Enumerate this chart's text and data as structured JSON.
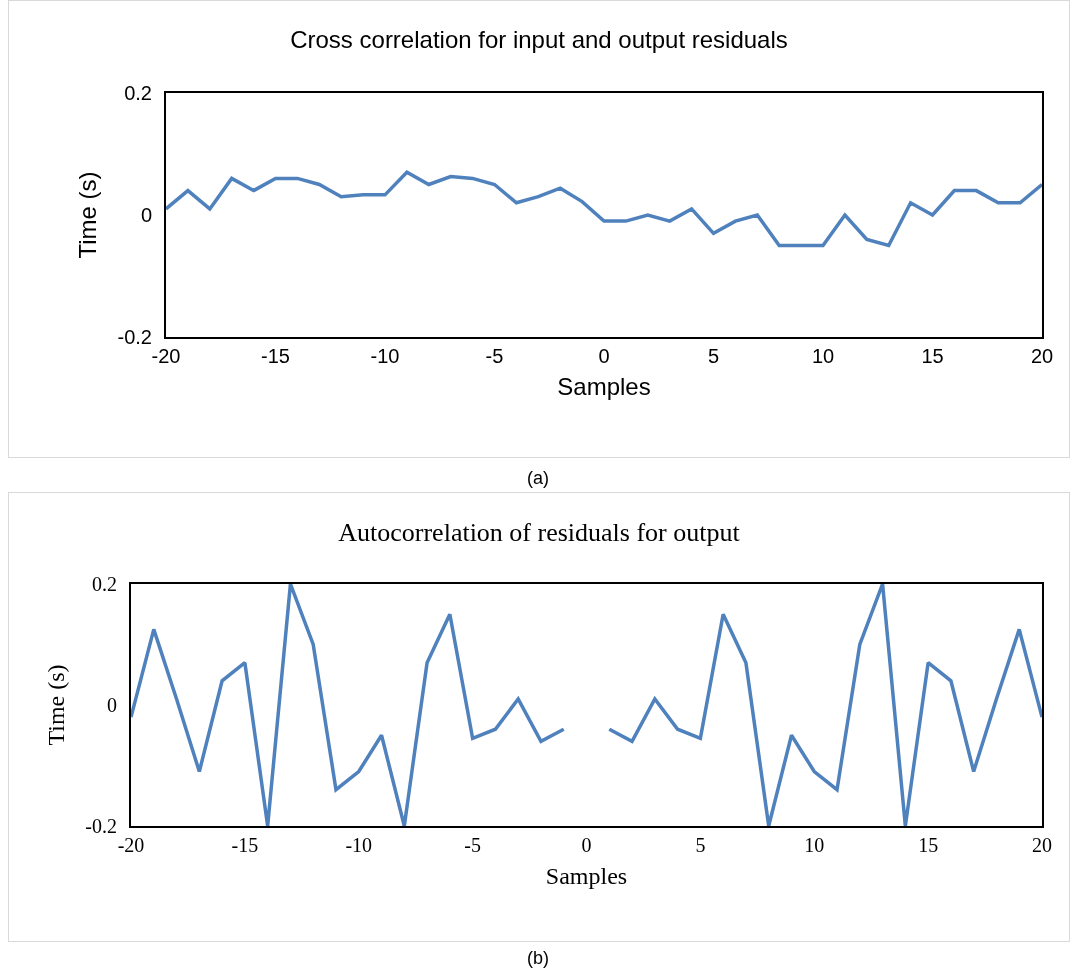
{
  "chart_data": [
    {
      "type": "line",
      "title": "Cross correlation for input and output residuals",
      "xlabel": "Samples",
      "ylabel": "Time (s)",
      "annotations": [
        "(a)"
      ],
      "x": [
        -20,
        -19,
        -18,
        -17,
        -16,
        -15,
        -14,
        -13,
        -12,
        -11,
        -10,
        -9,
        -8,
        -7,
        -6,
        -5,
        -4,
        -3,
        -2,
        -1,
        0,
        1,
        2,
        3,
        4,
        5,
        6,
        7,
        8,
        9,
        10,
        11,
        12,
        13,
        14,
        15,
        16,
        17,
        18,
        19,
        20
      ],
      "series": [
        {
          "color": "#4f81bd",
          "values": [
            0.01,
            0.04,
            0.01,
            0.06,
            0.04,
            0.06,
            0.06,
            0.05,
            0.03,
            0.033,
            0.033,
            0.07,
            0.05,
            0.063,
            0.06,
            0.05,
            0.02,
            0.03,
            0.044,
            0.022,
            -0.01,
            -0.01,
            0,
            -0.01,
            0.01,
            -0.03,
            -0.01,
            0,
            -0.05,
            -0.05,
            -0.05,
            0,
            -0.04,
            -0.05,
            0.02,
            0,
            0.04,
            0.04,
            0.02,
            0.02,
            0.05
          ]
        }
      ],
      "xlim": [
        -20,
        20
      ],
      "xticks": [
        -20,
        -15,
        -10,
        -5,
        0,
        5,
        10,
        15,
        20
      ],
      "ylim": [
        -0.2,
        0.2
      ],
      "yticks": [
        -0.2,
        0,
        0.2
      ],
      "marker": "none",
      "line_style": "solid"
    },
    {
      "type": "line",
      "title": "Autocorrelation of residuals for output",
      "xlabel": "Samples",
      "ylabel": "Time (s)",
      "annotations": [
        "(b)"
      ],
      "x": [
        -20,
        -19,
        -18,
        -17,
        -16,
        -15,
        -14,
        -13,
        -12,
        -11,
        -10,
        -9,
        -8,
        -7,
        -6,
        -5,
        -4,
        -3,
        -2,
        -1,
        0,
        1,
        2,
        3,
        4,
        5,
        6,
        7,
        8,
        9,
        10,
        11,
        12,
        13,
        14,
        15,
        16,
        17,
        18,
        19,
        20
      ],
      "series": [
        {
          "color": "#4f81bd",
          "values": [
            -0.02,
            0.125,
            0.01,
            -0.11,
            0.04,
            0.07,
            -0.2,
            0.2,
            0.1,
            -0.14,
            -0.11,
            -0.05,
            -0.2,
            0.07,
            0.15,
            -0.055,
            -0.04,
            0.01,
            -0.06,
            -0.04,
            null,
            -0.04,
            -0.06,
            0.01,
            -0.04,
            -0.055,
            0.15,
            0.07,
            -0.2,
            -0.05,
            -0.11,
            -0.14,
            0.1,
            0.2,
            -0.2,
            0.07,
            0.04,
            -0.11,
            0.01,
            0.125,
            -0.02
          ]
        }
      ],
      "xlim": [
        -20,
        20
      ],
      "xticks": [
        -20,
        -15,
        -10,
        -5,
        0,
        5,
        10,
        15,
        20
      ],
      "ylim": [
        -0.2,
        0.2
      ],
      "yticks": [
        -0.2,
        0,
        0.2
      ],
      "marker": "none",
      "line_style": "solid"
    }
  ]
}
